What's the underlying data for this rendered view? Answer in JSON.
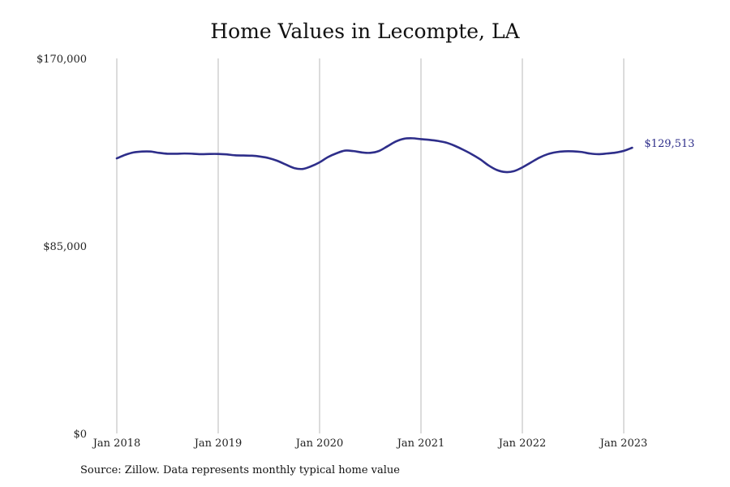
{
  "chart_data": {
    "type": "line",
    "title": "Home Values in Lecompte, LA",
    "xlabel": "",
    "ylabel": "",
    "ylim": [
      0,
      170000
    ],
    "y_ticks": [
      0,
      85000,
      170000
    ],
    "y_tick_labels": [
      "$0",
      "$85,000",
      "$170,000"
    ],
    "x_ticks": [
      "2018-01",
      "2019-01",
      "2020-01",
      "2021-01",
      "2022-01",
      "2023-01"
    ],
    "x_tick_labels": [
      "Jan 2018",
      "Jan 2019",
      "Jan 2020",
      "Jan 2021",
      "Jan 2022",
      "Jan 2023"
    ],
    "grid": "vertical",
    "line_color": "#2e2e8a",
    "series": [
      {
        "x": [
          "2018-01",
          "2018-02",
          "2018-03",
          "2018-04",
          "2018-05",
          "2018-06",
          "2018-07",
          "2018-08",
          "2018-09",
          "2018-10",
          "2018-11",
          "2018-12",
          "2019-01",
          "2019-02",
          "2019-03",
          "2019-04",
          "2019-05",
          "2019-06",
          "2019-07",
          "2019-08",
          "2019-09",
          "2019-10",
          "2019-11",
          "2019-12",
          "2020-01",
          "2020-02",
          "2020-03",
          "2020-04",
          "2020-05",
          "2020-06",
          "2020-07",
          "2020-08",
          "2020-09",
          "2020-10",
          "2020-11",
          "2020-12",
          "2021-01",
          "2021-02",
          "2021-03",
          "2021-04",
          "2021-05",
          "2021-06",
          "2021-07",
          "2021-08",
          "2021-09",
          "2021-10",
          "2021-11",
          "2021-12",
          "2022-01",
          "2022-02",
          "2022-03",
          "2022-04",
          "2022-05",
          "2022-06",
          "2022-07",
          "2022-08",
          "2022-09",
          "2022-10",
          "2022-11",
          "2022-12",
          "2023-01",
          "2023-02"
        ],
        "values": [
          124700,
          126300,
          127400,
          127800,
          127800,
          127200,
          126800,
          126800,
          126900,
          126800,
          126600,
          126700,
          126700,
          126500,
          126100,
          126000,
          125900,
          125500,
          124800,
          123600,
          121900,
          120300,
          119900,
          121100,
          122900,
          125300,
          127000,
          128200,
          128000,
          127400,
          127200,
          128000,
          130100,
          132300,
          133600,
          133800,
          133400,
          133100,
          132600,
          131800,
          130400,
          128600,
          126600,
          124300,
          121500,
          119400,
          118500,
          118900,
          120600,
          122800,
          125000,
          126600,
          127500,
          127900,
          127900,
          127600,
          126900,
          126600,
          126900,
          127300,
          128100,
          129513
        ]
      }
    ],
    "annotations": [
      {
        "text": "$129,513",
        "x": "2023-02",
        "y": 129513,
        "color": "#2e2e8a"
      }
    ]
  },
  "footer": {
    "source": "Source: Zillow. Data represents monthly typical home value"
  }
}
